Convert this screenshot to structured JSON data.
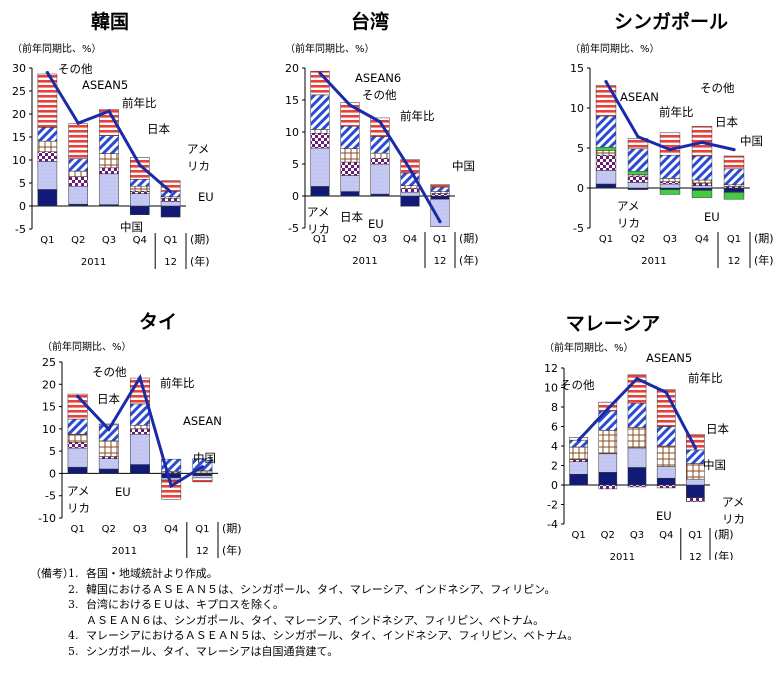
{
  "chart_data": [
    {
      "type": "bar",
      "stacked": true,
      "title": "韓国",
      "ylabel": "（前年同期比、%）",
      "ylim": [
        -5,
        30
      ],
      "yticks": [
        -5,
        0,
        5,
        10,
        15,
        20,
        25,
        30
      ],
      "categories": [
        "Q1",
        "Q2",
        "Q3",
        "Q4",
        "Q1"
      ],
      "year_labels": [
        "2011",
        "12"
      ],
      "period_label": "(期)",
      "year_unit": "(年)",
      "series": [
        {
          "name": "EU",
          "style": "eu",
          "values": [
            3.6,
            0.4,
            0.3,
            -1.9,
            -2.4
          ]
        },
        {
          "name": "中国",
          "style": "china",
          "values": [
            6.1,
            3.9,
            6.7,
            2.7,
            1.0
          ]
        },
        {
          "name": "アメリカ",
          "style": "usa",
          "values": [
            2.1,
            2.1,
            1.3,
            0.5,
            0.7
          ]
        },
        {
          "name": "日本",
          "style": "japan",
          "values": [
            2.3,
            1.2,
            3.1,
            1.1,
            0.3
          ]
        },
        {
          "name": "ASEAN5",
          "style": "asean",
          "values": [
            3.0,
            2.7,
            3.9,
            1.5,
            1.2
          ]
        },
        {
          "name": "その他",
          "style": "other",
          "values": [
            11.6,
            7.6,
            5.7,
            4.8,
            2.3
          ]
        }
      ],
      "line": {
        "name": "前年比",
        "values": [
          29.0,
          18.0,
          20.6,
          8.9,
          3.1
        ]
      },
      "annotations": [
        "その他",
        "ASEAN5",
        "前年比",
        "日本",
        "アメ",
        "リカ",
        "EU",
        "中国"
      ]
    },
    {
      "type": "bar",
      "stacked": true,
      "title": "台湾",
      "ylabel": "（前年同期比、%）",
      "ylim": [
        -5,
        20
      ],
      "yticks": [
        -5,
        0,
        5,
        10,
        15,
        20
      ],
      "categories": [
        "Q1",
        "Q2",
        "Q3",
        "Q4",
        "Q1"
      ],
      "year_labels": [
        "2011",
        "12"
      ],
      "period_label": "(期)",
      "year_unit": "(年)",
      "series": [
        {
          "name": "EU",
          "style": "eu",
          "values": [
            1.5,
            0.7,
            0.3,
            -1.6,
            -0.5
          ]
        },
        {
          "name": "中国",
          "style": "china",
          "values": [
            6.0,
            2.5,
            4.7,
            0.6,
            -4.3
          ]
        },
        {
          "name": "アメリカ",
          "style": "usa",
          "values": [
            2.3,
            2.1,
            0.9,
            0.6,
            0.4
          ]
        },
        {
          "name": "日本",
          "style": "japan",
          "values": [
            0.6,
            2.1,
            0.8,
            0.4,
            0.3
          ]
        },
        {
          "name": "ASEAN6",
          "style": "asean",
          "values": [
            5.4,
            3.5,
            2.6,
            2.0,
            0.7
          ]
        },
        {
          "name": "その他",
          "style": "other",
          "values": [
            3.7,
            3.7,
            2.9,
            2.1,
            0.4
          ]
        }
      ],
      "line": {
        "name": "前年比",
        "values": [
          19.2,
          14.2,
          11.6,
          4.2,
          -4.0
        ]
      },
      "annotations": [
        "ASEAN6",
        "その他",
        "前年比",
        "アメ",
        "リカ",
        "日本",
        "EU",
        "中国"
      ]
    },
    {
      "type": "bar",
      "stacked": true,
      "title": "シンガポール",
      "ylabel": "（前年同期比、%）",
      "ylim": [
        -5,
        15
      ],
      "yticks": [
        -5,
        0,
        5,
        10,
        15
      ],
      "categories": [
        "Q1",
        "Q2",
        "Q3",
        "Q4",
        "Q1"
      ],
      "year_labels": [
        "2011",
        "12"
      ],
      "period_label": "(期)",
      "year_unit": "(年)",
      "series": [
        {
          "name": "EU",
          "style": "eu",
          "values": [
            0.5,
            -0.2,
            -0.2,
            -0.3,
            -0.5
          ]
        },
        {
          "name": "中国",
          "style": "china",
          "values": [
            1.7,
            0.7,
            0.5,
            0.3,
            -0.1
          ]
        },
        {
          "name": "アメリカ",
          "style": "usa",
          "values": [
            1.9,
            0.8,
            0.3,
            0.3,
            0.2
          ]
        },
        {
          "name": "日本",
          "style": "japan",
          "values": [
            0.6,
            0.2,
            0.4,
            0.4,
            0.2
          ]
        },
        {
          "name": "EU(緑)",
          "style": "green",
          "values": [
            0.4,
            0.4,
            -0.6,
            -0.9,
            -0.8
          ]
        },
        {
          "name": "ASEAN",
          "style": "asean",
          "values": [
            3.9,
            2.8,
            2.9,
            3.0,
            2.0
          ]
        },
        {
          "name": "その他",
          "style": "other",
          "values": [
            3.8,
            1.3,
            2.8,
            3.7,
            1.6
          ]
        }
      ],
      "line": {
        "name": "前年比",
        "values": [
          13.3,
          6.4,
          4.8,
          5.7,
          4.8
        ]
      },
      "annotations": [
        "ASEAN",
        "その他",
        "前年比",
        "日本",
        "中国",
        "アメ",
        "リカ",
        "EU"
      ]
    },
    {
      "type": "bar",
      "stacked": true,
      "title": "タイ",
      "ylabel": "（前年同期比、%）",
      "ylim": [
        -10,
        25
      ],
      "yticks": [
        -10,
        -5,
        0,
        5,
        10,
        15,
        20,
        25
      ],
      "categories": [
        "Q1",
        "Q2",
        "Q3",
        "Q4",
        "Q1"
      ],
      "year_labels": [
        "2011",
        "12"
      ],
      "period_label": "(期)",
      "year_unit": "(年)",
      "series": [
        {
          "name": "EU",
          "style": "eu",
          "values": [
            1.4,
            1.0,
            2.0,
            -1.0,
            -0.5
          ]
        },
        {
          "name": "中国",
          "style": "china",
          "values": [
            4.3,
            2.3,
            6.8,
            -0.5,
            -0.5
          ]
        },
        {
          "name": "アメリカ",
          "style": "usa",
          "values": [
            1.3,
            0.5,
            1.2,
            0.3,
            0.1
          ]
        },
        {
          "name": "日本",
          "style": "japan",
          "values": [
            1.8,
            3.5,
            0.8,
            0.2,
            0.5
          ]
        },
        {
          "name": "ASEAN",
          "style": "asean",
          "values": [
            3.4,
            3.6,
            4.8,
            2.7,
            2.7
          ]
        },
        {
          "name": "その他",
          "style": "other",
          "values": [
            5.6,
            0.2,
            5.8,
            -4.3,
            -0.9
          ]
        }
      ],
      "line": {
        "name": "前年比",
        "values": [
          17.3,
          9.9,
          21.5,
          -2.8,
          1.5
        ]
      },
      "annotations": [
        "その他",
        "日本",
        "前年比",
        "ASEAN",
        "中国",
        "アメ",
        "リカ",
        "EU"
      ]
    },
    {
      "type": "bar",
      "stacked": true,
      "title": "マレーシア",
      "ylabel": "（前年同期比、%）",
      "ylim": [
        -4,
        12
      ],
      "yticks": [
        -4,
        -2,
        0,
        2,
        4,
        6,
        8,
        10,
        12
      ],
      "categories": [
        "Q1",
        "Q2",
        "Q3",
        "Q4",
        "Q1"
      ],
      "year_labels": [
        "2011",
        "12"
      ],
      "period_label": "(期)",
      "year_unit": "(年)",
      "series": [
        {
          "name": "EU",
          "style": "eu",
          "values": [
            1.1,
            1.3,
            1.8,
            0.7,
            -1.3
          ]
        },
        {
          "name": "中国",
          "style": "china",
          "values": [
            1.3,
            1.9,
            2.0,
            1.2,
            0.6
          ]
        },
        {
          "name": "アメリカ",
          "style": "usa",
          "values": [
            0.2,
            -0.4,
            -0.2,
            -0.3,
            -0.4
          ]
        },
        {
          "name": "日本",
          "style": "japan",
          "values": [
            1.3,
            2.4,
            2.1,
            2.1,
            1.6
          ]
        },
        {
          "name": "ASEAN5",
          "style": "asean",
          "values": [
            0.7,
            2.0,
            2.5,
            2.0,
            1.4
          ]
        },
        {
          "name": "その他",
          "style": "other",
          "values": [
            0.3,
            0.9,
            2.9,
            3.8,
            1.6
          ]
        }
      ],
      "line": {
        "name": "前年比",
        "values": [
          4.6,
          7.8,
          10.9,
          9.5,
          3.8
        ]
      },
      "annotations": [
        "ASEAN5",
        "その他",
        "前年比",
        "日本",
        "中国",
        "EU",
        "アメ",
        "リカ"
      ]
    }
  ],
  "notes": {
    "head": "（備考）",
    "items": [
      {
        "num": "1.",
        "text": "各国・地域統計より作成。"
      },
      {
        "num": "2.",
        "text": "韓国におけるＡＳＥＡＮ５は、シンガポール、タイ、マレーシア、インドネシア、フィリピン。"
      },
      {
        "num": "3.",
        "text": "台湾におけるＥＵは、キプロスを除く。"
      },
      {
        "num": "",
        "text": "ＡＳＥＡＮ６は、シンガポール、タイ、マレーシア、インドネシア、フィリピン、ベトナム。"
      },
      {
        "num": "4.",
        "text": "マレーシアにおけるＡＳＥＡＮ５は、シンガポール、タイ、インドネシア、フィリピン、ベトナム。"
      },
      {
        "num": "5.",
        "text": "シンガポール、タイ、マレーシアは自国通貨建て。"
      }
    ]
  }
}
